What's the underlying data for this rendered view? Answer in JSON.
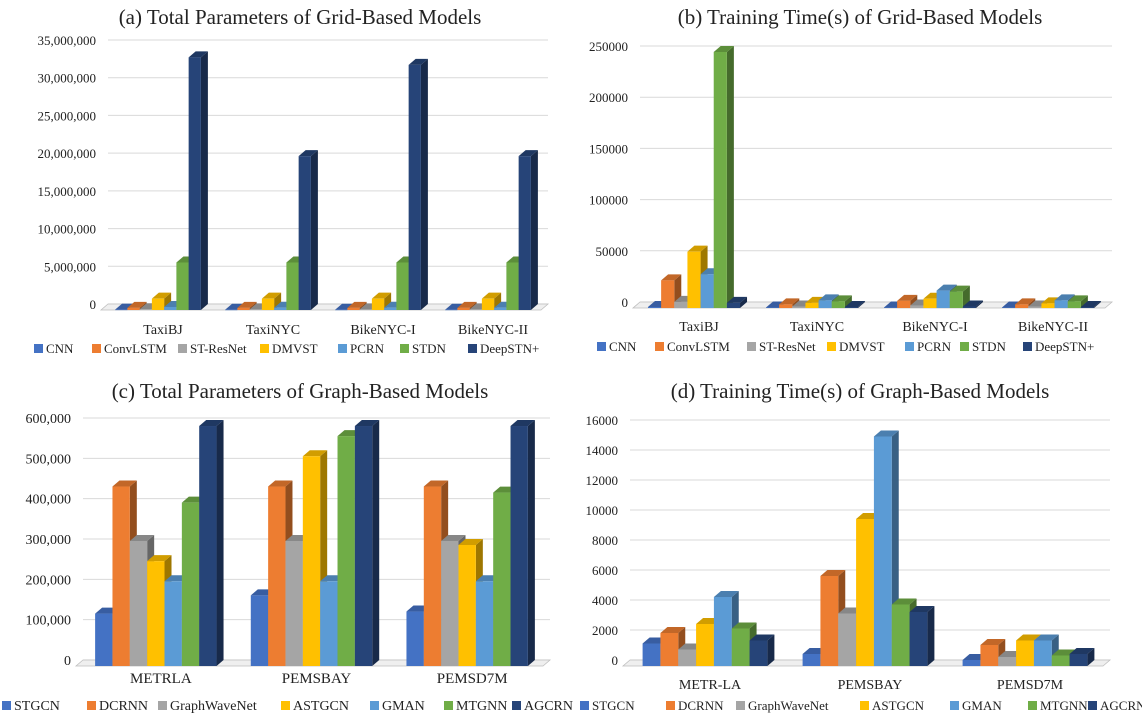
{
  "colors": {
    "grid_series": [
      "#4472C4",
      "#ED7D31",
      "#A5A5A5",
      "#FFC000",
      "#5B9BD5",
      "#70AD47",
      "#264478"
    ],
    "graph_series": [
      "#4472C4",
      "#ED7D31",
      "#A5A5A5",
      "#FFC000",
      "#5B9BD5",
      "#70AD47",
      "#264478"
    ],
    "gridline": "#D9D9D9",
    "axis": "#BFBFBF"
  },
  "chart_data": [
    {
      "type": "bar",
      "title": "(a) Total Parameters of Grid-Based Models",
      "xlabel": "",
      "ylabel": "",
      "ylim": [
        0,
        35000000
      ],
      "yticks": [
        0,
        5000000,
        10000000,
        15000000,
        20000000,
        25000000,
        30000000,
        35000000
      ],
      "ytick_labels": [
        "0",
        "5,000,000",
        "10,000,000",
        "15,000,000",
        "20,000,000",
        "25,000,000",
        "30,000,000",
        "35,000,000"
      ],
      "categories": [
        "TaxiBJ",
        "TaxiNYC",
        "BikeNYC-I",
        "BikeNYC-II"
      ],
      "series": [
        {
          "name": "CNN",
          "values": [
            50000,
            40000,
            40000,
            40000
          ]
        },
        {
          "name": "ConvLSTM",
          "values": [
            280000,
            280000,
            280000,
            280000
          ]
        },
        {
          "name": "ST-ResNet",
          "values": [
            100000,
            80000,
            80000,
            80000
          ]
        },
        {
          "name": "DMVST",
          "values": [
            1500000,
            1500000,
            1500000,
            1500000
          ]
        },
        {
          "name": "PCRN",
          "values": [
            400000,
            300000,
            300000,
            300000
          ]
        },
        {
          "name": "STDN",
          "values": [
            6300000,
            6300000,
            6300000,
            6300000
          ]
        },
        {
          "name": "DeepSTN+",
          "values": [
            33500000,
            20400000,
            32500000,
            20400000
          ]
        }
      ],
      "legend": "bottom"
    },
    {
      "type": "bar",
      "title": "(b) Training Time(s) of Grid-Based Models",
      "xlabel": "",
      "ylabel": "",
      "ylim": [
        0,
        250000
      ],
      "yticks": [
        0,
        50000,
        100000,
        150000,
        200000,
        250000
      ],
      "ytick_labels": [
        "0",
        "50000",
        "100000",
        "150000",
        "200000",
        "250000"
      ],
      "categories": [
        "TaxiBJ",
        "TaxiNYC",
        "BikeNYC-I",
        "BikeNYC-II"
      ],
      "series": [
        {
          "name": "CNN",
          "values": [
            1000,
            500,
            500,
            500
          ]
        },
        {
          "name": "ConvLSTM",
          "values": [
            27000,
            3500,
            7000,
            3500
          ]
        },
        {
          "name": "ST-ResNet",
          "values": [
            6000,
            1500,
            2500,
            1500
          ]
        },
        {
          "name": "DMVST",
          "values": [
            55000,
            5000,
            9000,
            4500
          ]
        },
        {
          "name": "PCRN",
          "values": [
            33000,
            7500,
            17000,
            7500
          ]
        },
        {
          "name": "STDN",
          "values": [
            250000,
            6500,
            16000,
            6500
          ]
        },
        {
          "name": "DeepSTN+",
          "values": [
            5000,
            1000,
            1500,
            1000
          ]
        }
      ],
      "legend": "bottom"
    },
    {
      "type": "bar",
      "title": "(c) Total Parameters of Graph-Based Models",
      "xlabel": "",
      "ylabel": "",
      "ylim": [
        0,
        600000
      ],
      "yticks": [
        0,
        100000,
        200000,
        300000,
        400000,
        500000,
        600000
      ],
      "ytick_labels": [
        "0",
        "100,000",
        "200,000",
        "300,000",
        "400,000",
        "500,000",
        "600,000"
      ],
      "categories": [
        "METRLA",
        "PEMSBAY",
        "PEMSD7M"
      ],
      "series": [
        {
          "name": "STGCN",
          "values": [
            130000,
            175000,
            135000
          ]
        },
        {
          "name": "DCRNN",
          "values": [
            445000,
            445000,
            445000
          ]
        },
        {
          "name": "GraphWaveNet",
          "values": [
            310000,
            310000,
            310000
          ]
        },
        {
          "name": "ASTGCN",
          "values": [
            260000,
            520000,
            300000
          ]
        },
        {
          "name": "GMAN",
          "values": [
            210000,
            210000,
            210000
          ]
        },
        {
          "name": "MTGNN",
          "values": [
            405000,
            570000,
            430000
          ]
        },
        {
          "name": "AGCRN",
          "values": [
            595000,
            595000,
            595000
          ]
        }
      ],
      "legend": "bottom"
    },
    {
      "type": "bar",
      "title": "(d) Training Time(s) of Graph-Based Models",
      "xlabel": "",
      "ylabel": "",
      "ylim": [
        0,
        16000
      ],
      "yticks": [
        0,
        2000,
        4000,
        6000,
        8000,
        10000,
        12000,
        14000,
        16000
      ],
      "ytick_labels": [
        "0",
        "2000",
        "4000",
        "6000",
        "8000",
        "10000",
        "12000",
        "14000",
        "16000"
      ],
      "categories": [
        "METR-LA",
        "PEMSBAY",
        "PEMSD7M"
      ],
      "series": [
        {
          "name": "STGCN",
          "values": [
            1500,
            800,
            400
          ]
        },
        {
          "name": "DCRNN",
          "values": [
            2200,
            6000,
            1400
          ]
        },
        {
          "name": "GraphWaveNet",
          "values": [
            1100,
            3500,
            600
          ]
        },
        {
          "name": "ASTGCN",
          "values": [
            2800,
            9800,
            1700
          ]
        },
        {
          "name": "GMAN",
          "values": [
            4600,
            15300,
            1700
          ]
        },
        {
          "name": "MTGNN",
          "values": [
            2500,
            4100,
            700
          ]
        },
        {
          "name": "AGCRN",
          "values": [
            1700,
            3600,
            800
          ]
        }
      ],
      "legend": "bottom"
    }
  ]
}
